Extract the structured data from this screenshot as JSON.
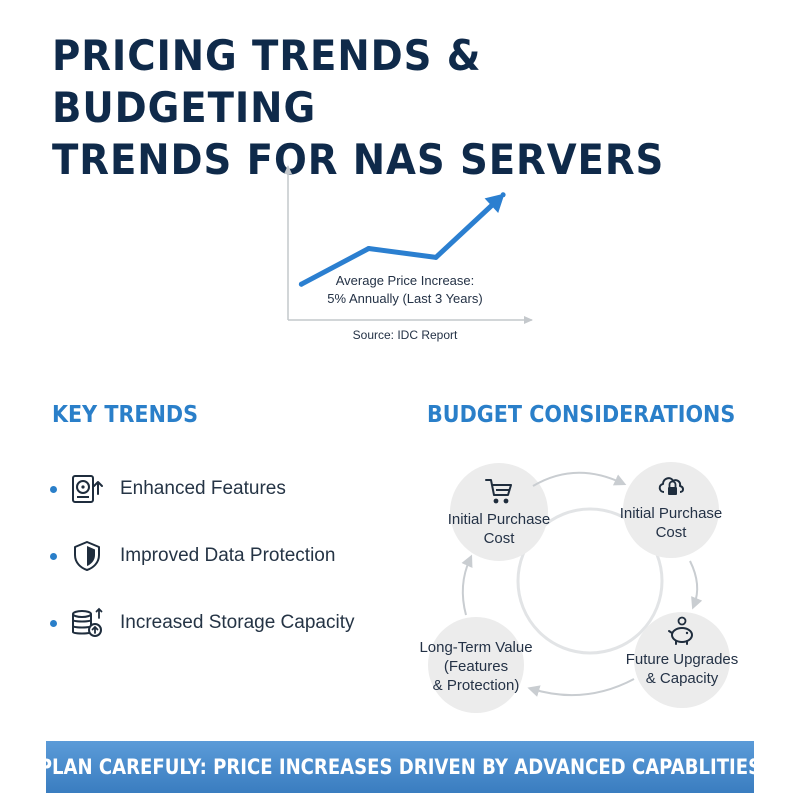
{
  "title": {
    "line1": "PRICING TRENDS & BUDGETING",
    "line2": "TRENDS FOR NAS SERVERS"
  },
  "chart_data": {
    "type": "line",
    "title": "",
    "xlabel": "",
    "ylabel": "",
    "x": [
      0,
      1,
      2,
      3
    ],
    "series": [
      {
        "values": [
          1.0,
          1.8,
          1.6,
          3.0
        ]
      }
    ],
    "xlim": [
      -0.2,
      3.4
    ],
    "ylim": [
      0.2,
      3.6
    ],
    "grid": false,
    "arrow_end": true,
    "annotation": {
      "line1": "Average Price Increase:",
      "line2": "5% Annually (Last 3 Years)"
    },
    "source": "Source: IDC Report",
    "colors": {
      "line": "#2b7fd0",
      "axis": "#c4c8cc"
    }
  },
  "key_trends": {
    "heading": "KEY TRENDS",
    "items": [
      {
        "label": "Enhanced Features",
        "icon": "hard-drive-upgrade-icon"
      },
      {
        "label": "Improved Data Protection",
        "icon": "shield-icon"
      },
      {
        "label": "Increased Storage Capacity",
        "icon": "storage-stack-icon"
      }
    ]
  },
  "budget": {
    "heading": "BUDGET CONSIDERATIONS",
    "nodes": [
      {
        "label": "Initial Purchase\nCost",
        "icon": "shopping-cart-icon"
      },
      {
        "label": "Initial Purchase\nCost",
        "icon": "cloud-lock-icon"
      },
      {
        "label": "Future Upgrades\n& Capacity",
        "icon": "piggy-bank-icon"
      },
      {
        "label": "Long-Term Value\n(Features\n& Protection)",
        "icon": ""
      }
    ]
  },
  "banner": {
    "text": "PLAN CAREFULY: PRICE INCREASES DRIVEN BY ADVANCED CAPABLITIES"
  },
  "colors": {
    "accent": "#2a7fc9",
    "title": "#0f2a4a",
    "banner": "#4a8ccb",
    "node_bg": "#ececec"
  }
}
